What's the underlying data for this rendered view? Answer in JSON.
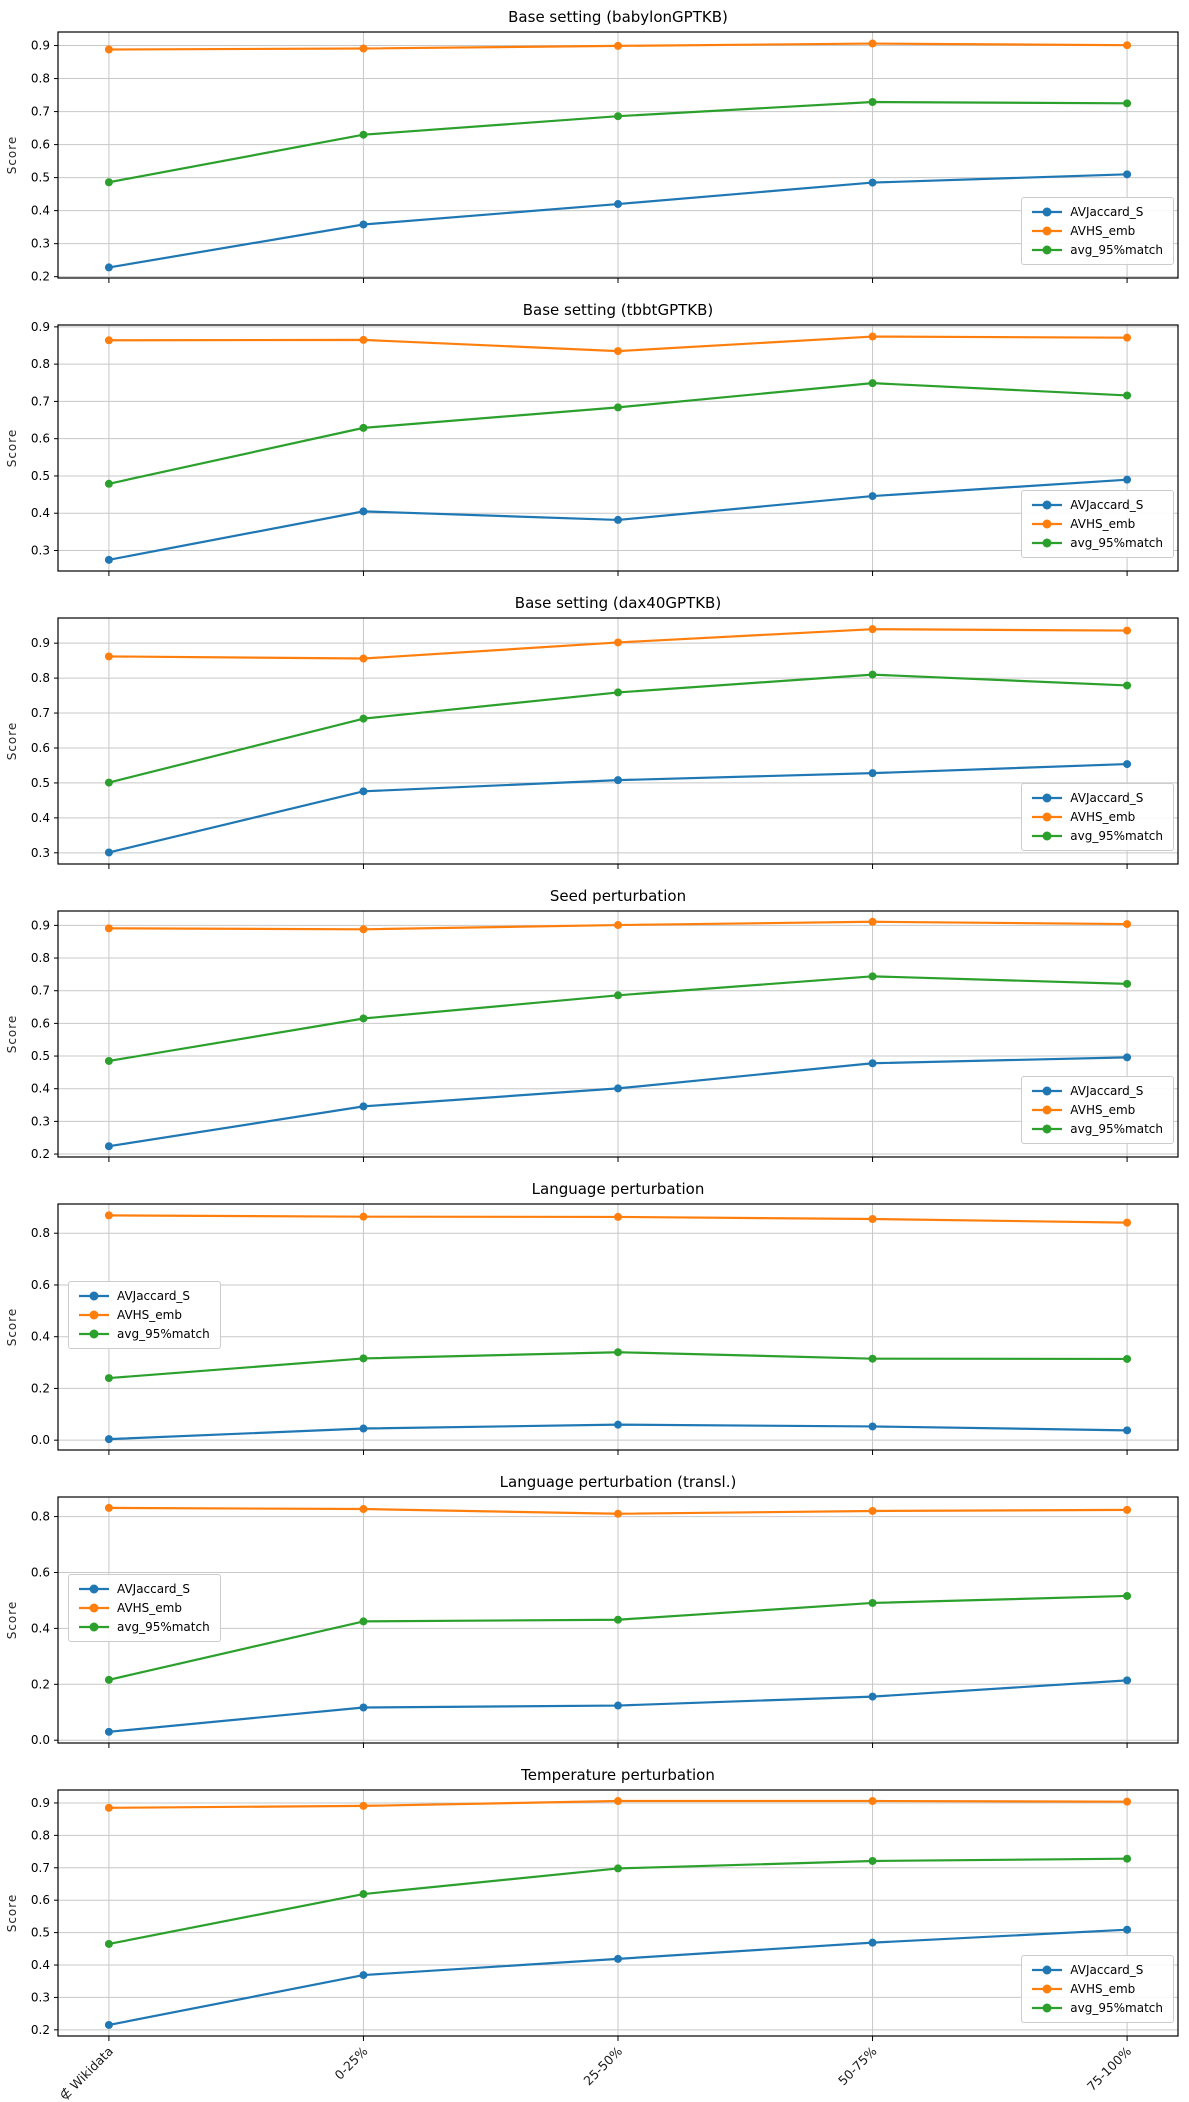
{
  "figure": {
    "ylabel": "Score",
    "background": "#ffffff",
    "series_colors": {
      "AVJaccard_S": "#1f77b4",
      "AVHS_emb": "#ff7f0e",
      "avg_95%match": "#2ca02c"
    },
    "grid_color": "#c8c8c8",
    "grid": "on"
  },
  "chart_data": [
    {
      "type": "line",
      "title": "Base setting (babylonGPTKB)",
      "ylabel": "Score",
      "categories": [
        "∉ Wikidata",
        "0-25%",
        "25-50%",
        "50-75%",
        "75-100%"
      ],
      "yticks": [
        "0.2",
        "0.3",
        "0.4",
        "0.5",
        "0.6",
        "0.7",
        "0.8",
        "0.9"
      ],
      "ylim": [
        0.196,
        0.941
      ],
      "legend_position": "lower right",
      "show_x_tick_labels": false,
      "series": [
        {
          "name": "AVJaccard_S",
          "color": "#1f77b4",
          "values": [
            0.228,
            0.358,
            0.42,
            0.485,
            0.51
          ]
        },
        {
          "name": "AVHS_emb",
          "color": "#ff7f0e",
          "values": [
            0.888,
            0.891,
            0.899,
            0.906,
            0.901
          ]
        },
        {
          "name": "avg_95%match",
          "color": "#2ca02c",
          "values": [
            0.486,
            0.63,
            0.686,
            0.729,
            0.725
          ]
        }
      ]
    },
    {
      "type": "line",
      "title": "Base setting (tbbtGPTKB)",
      "ylabel": "Score",
      "categories": [
        "∉ Wikidata",
        "0-25%",
        "25-50%",
        "50-75%",
        "75-100%"
      ],
      "yticks": [
        "0.3",
        "0.4",
        "0.5",
        "0.6",
        "0.7",
        "0.8",
        "0.9"
      ],
      "ylim": [
        0.245,
        0.905
      ],
      "legend_position": "lower right",
      "show_x_tick_labels": false,
      "series": [
        {
          "name": "AVJaccard_S",
          "color": "#1f77b4",
          "values": [
            0.275,
            0.405,
            0.382,
            0.446,
            0.49
          ]
        },
        {
          "name": "AVHS_emb",
          "color": "#ff7f0e",
          "values": [
            0.864,
            0.865,
            0.835,
            0.874,
            0.871
          ]
        },
        {
          "name": "avg_95%match",
          "color": "#2ca02c",
          "values": [
            0.479,
            0.629,
            0.684,
            0.749,
            0.716
          ]
        }
      ]
    },
    {
      "type": "line",
      "title": "Base setting (dax40GPTKB)",
      "ylabel": "Score",
      "categories": [
        "∉ Wikidata",
        "0-25%",
        "25-50%",
        "50-75%",
        "75-100%"
      ],
      "yticks": [
        "0.3",
        "0.4",
        "0.5",
        "0.6",
        "0.7",
        "0.8",
        "0.9"
      ],
      "ylim": [
        0.268,
        0.972
      ],
      "legend_position": "lower right",
      "show_x_tick_labels": false,
      "series": [
        {
          "name": "AVJaccard_S",
          "color": "#1f77b4",
          "values": [
            0.301,
            0.476,
            0.508,
            0.528,
            0.554
          ]
        },
        {
          "name": "AVHS_emb",
          "color": "#ff7f0e",
          "values": [
            0.862,
            0.856,
            0.902,
            0.94,
            0.936
          ]
        },
        {
          "name": "avg_95%match",
          "color": "#2ca02c",
          "values": [
            0.501,
            0.684,
            0.759,
            0.81,
            0.779
          ]
        }
      ]
    },
    {
      "type": "line",
      "title": "Seed perturbation",
      "ylabel": "Score",
      "categories": [
        "∉ Wikidata",
        "0-25%",
        "25-50%",
        "50-75%",
        "75-100%"
      ],
      "yticks": [
        "0.2",
        "0.3",
        "0.4",
        "0.5",
        "0.6",
        "0.7",
        "0.8",
        "0.9"
      ],
      "ylim": [
        0.191,
        0.944
      ],
      "legend_position": "lower right",
      "show_x_tick_labels": false,
      "series": [
        {
          "name": "AVJaccard_S",
          "color": "#1f77b4",
          "values": [
            0.224,
            0.346,
            0.401,
            0.478,
            0.496
          ]
        },
        {
          "name": "AVHS_emb",
          "color": "#ff7f0e",
          "values": [
            0.891,
            0.888,
            0.901,
            0.911,
            0.904
          ]
        },
        {
          "name": "avg_95%match",
          "color": "#2ca02c",
          "values": [
            0.485,
            0.615,
            0.686,
            0.744,
            0.721
          ]
        }
      ]
    },
    {
      "type": "line",
      "title": "Language perturbation",
      "ylabel": "Score",
      "categories": [
        "∉ Wikidata",
        "0-25%",
        "25-50%",
        "50-75%",
        "75-100%"
      ],
      "yticks": [
        "0.0",
        "0.2",
        "0.4",
        "0.6",
        "0.8"
      ],
      "ylim": [
        -0.038,
        0.913
      ],
      "legend_position": "center left",
      "show_x_tick_labels": false,
      "series": [
        {
          "name": "AVJaccard_S",
          "color": "#1f77b4",
          "values": [
            0.004,
            0.045,
            0.06,
            0.053,
            0.038
          ]
        },
        {
          "name": "AVHS_emb",
          "color": "#ff7f0e",
          "values": [
            0.869,
            0.864,
            0.863,
            0.855,
            0.841
          ]
        },
        {
          "name": "avg_95%match",
          "color": "#2ca02c",
          "values": [
            0.24,
            0.316,
            0.34,
            0.315,
            0.314
          ]
        }
      ]
    },
    {
      "type": "line",
      "title": "Language perturbation (transl.)",
      "ylabel": "Score",
      "categories": [
        "∉ Wikidata",
        "0-25%",
        "25-50%",
        "50-75%",
        "75-100%"
      ],
      "yticks": [
        "0.0",
        "0.2",
        "0.4",
        "0.6",
        "0.8"
      ],
      "ylim": [
        -0.01,
        0.87
      ],
      "legend_position": "center left",
      "show_x_tick_labels": false,
      "series": [
        {
          "name": "AVJaccard_S",
          "color": "#1f77b4",
          "values": [
            0.03,
            0.117,
            0.124,
            0.156,
            0.214
          ]
        },
        {
          "name": "AVHS_emb",
          "color": "#ff7f0e",
          "values": [
            0.831,
            0.827,
            0.81,
            0.82,
            0.824
          ]
        },
        {
          "name": "avg_95%match",
          "color": "#2ca02c",
          "values": [
            0.216,
            0.425,
            0.431,
            0.491,
            0.516
          ]
        }
      ]
    },
    {
      "type": "line",
      "title": "Temperature perturbation",
      "ylabel": "Score",
      "categories": [
        "∉ Wikidata",
        "0-25%",
        "25-50%",
        "50-75%",
        "75-100%"
      ],
      "yticks": [
        "0.2",
        "0.3",
        "0.4",
        "0.5",
        "0.6",
        "0.7",
        "0.8",
        "0.9"
      ],
      "ylim": [
        0.181,
        0.94
      ],
      "legend_position": "lower right",
      "show_x_tick_labels": true,
      "series": [
        {
          "name": "AVJaccard_S",
          "color": "#1f77b4",
          "values": [
            0.215,
            0.369,
            0.419,
            0.469,
            0.509
          ]
        },
        {
          "name": "AVHS_emb",
          "color": "#ff7f0e",
          "values": [
            0.885,
            0.891,
            0.906,
            0.906,
            0.904
          ]
        },
        {
          "name": "avg_95%match",
          "color": "#2ca02c",
          "values": [
            0.465,
            0.619,
            0.698,
            0.721,
            0.728
          ]
        }
      ]
    }
  ]
}
